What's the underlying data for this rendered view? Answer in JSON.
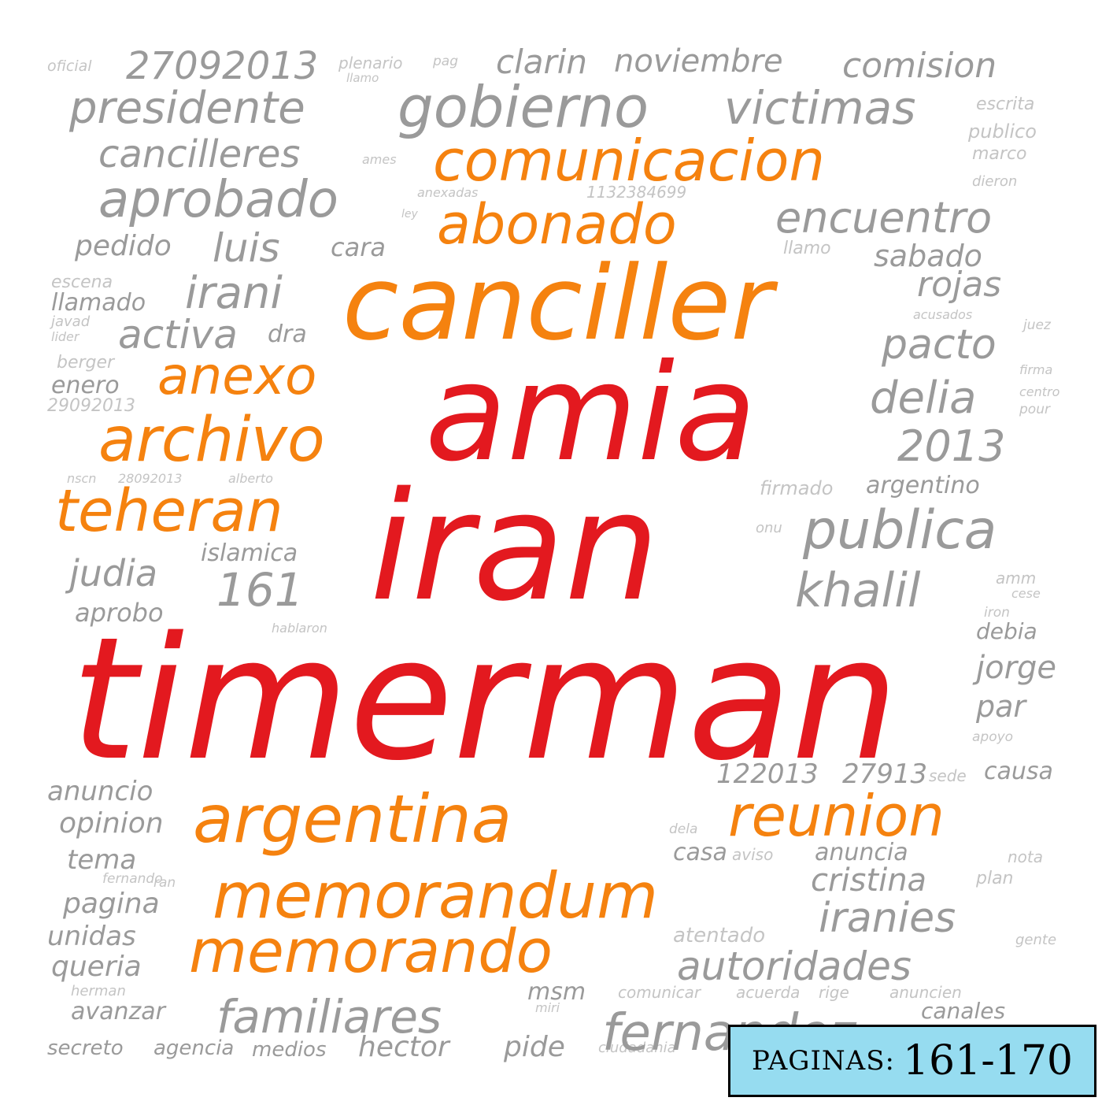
{
  "colors": {
    "red": "#e3191f",
    "orange": "#f5820f",
    "gray": "#9a9a9a",
    "tiny": "#c4c4c4",
    "badge_bg": "#96dcf0"
  },
  "badge": {
    "label": "PAGINAS:",
    "range": "161-170"
  },
  "words": {
    "timerman": "timerman",
    "iran": "iran",
    "amia": "amia",
    "canciller": "canciller",
    "argentina": "argentina",
    "memorandum": "memorandum",
    "memorando": "memorando",
    "comunicacion": "comunicacion",
    "abonado": "abonado",
    "reunion": "reunion",
    "anexo": "anexo",
    "archivo": "archivo",
    "teheran": "teheran",
    "gobierno": "gobierno",
    "victimas": "victimas",
    "presidente": "presidente",
    "cancilleres": "cancilleres",
    "aprobado": "aprobado",
    "encuentro": "encuentro",
    "comision": "comision",
    "n27092013": "27092013",
    "clarin": "clarin",
    "noviembre": "noviembre",
    "plenario": "plenario",
    "pag": "pag",
    "irani": "irani",
    "activa": "activa",
    "luis": "luis",
    "pedido": "pedido",
    "cara": "cara",
    "sabado": "sabado",
    "rojas": "rojas",
    "pacto": "pacto",
    "delia": "delia",
    "n2013": "2013",
    "argentino": "argentino",
    "firmado": "firmado",
    "publica": "publica",
    "khalil": "khalil",
    "n161": "161",
    "islamica": "islamica",
    "judia": "judia",
    "aprobo": "aprobo",
    "escena": "escena",
    "llamado": "llamado",
    "dra": "dra",
    "berger": "berger",
    "enero": "enero",
    "n29092013": "29092013",
    "n28092013": "28092013",
    "alberto": "alberto",
    "nscn": "nscn",
    "familiares": "familiares",
    "fernandez": "fernandez",
    "autoridades": "autoridades",
    "iranies": "iranies",
    "cristina": "cristina",
    "anuncia": "anuncia",
    "atentado": "atentado",
    "casa": "casa",
    "aviso": "aviso",
    "hector": "hector",
    "pide": "pide",
    "medios": "medios",
    "secreto": "secreto",
    "agencia": "agencia",
    "avanzar": "avanzar",
    "queria": "queria",
    "unidas": "unidas",
    "pagina": "pagina",
    "tema": "tema",
    "opinion": "opinion",
    "anuncio": "anuncio",
    "n122013": "122013",
    "n27913": "27913",
    "sede": "sede",
    "causa": "causa",
    "jorge": "jorge",
    "par": "par",
    "debia": "debia",
    "cese": "cese",
    "amm": "amm",
    "plan": "plan",
    "nota": "nota",
    "gente": "gente",
    "canales": "canales",
    "comunicar": "comunicar",
    "acuerda": "acuerda",
    "rige": "rige",
    "anuncien": "anuncien",
    "msm": "msm",
    "miri": "miri",
    "ciudadania": "ciudadania",
    "herman": "herman",
    "escrita": "escrita",
    "publico": "publico",
    "marco": "marco",
    "dieron": "dieron",
    "oficial": "oficial",
    "llamo": "llamo",
    "juez": "juez",
    "firma": "firma",
    "centro": "centro",
    "pour": "pour",
    "acusados": "acusados",
    "dela": "dela",
    "javad": "javad",
    "lider": "lider",
    "anexadas": "anexadas",
    "n1132384699": "1132384699",
    "ley": "ley",
    "onu": "onu",
    "hablaron": "hablaron",
    "ran": "ran",
    "fernando": "fernando",
    "iron": "iron",
    "apoyo": "apoyo",
    "ames": "ames"
  }
}
